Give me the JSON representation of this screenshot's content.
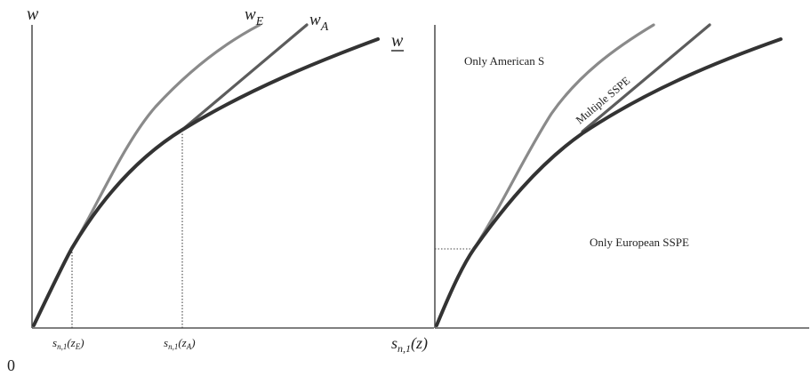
{
  "left_panel": {
    "y_axis_label": "w",
    "origin_label": "0",
    "curve_labels": {
      "w_E": {
        "main": "w",
        "sub": "E"
      },
      "w_A": {
        "main": "w",
        "sub": "A"
      },
      "w_under": "w"
    },
    "x_ticks": [
      {
        "s": "s",
        "sub": "n,1",
        "arg": "(z",
        "arg_sub": "E",
        "close": ")"
      },
      {
        "s": "s",
        "sub": "n,1",
        "arg": "(z",
        "arg_sub": "A",
        "close": ")"
      }
    ],
    "x_axis_label": {
      "s": "s",
      "sub": "n,1",
      "arg": "(z)"
    }
  },
  "right_panel": {
    "region_top_left": "Only American S",
    "region_between": "Multiple SSPE",
    "region_bottom": "Only European SSPE"
  }
}
